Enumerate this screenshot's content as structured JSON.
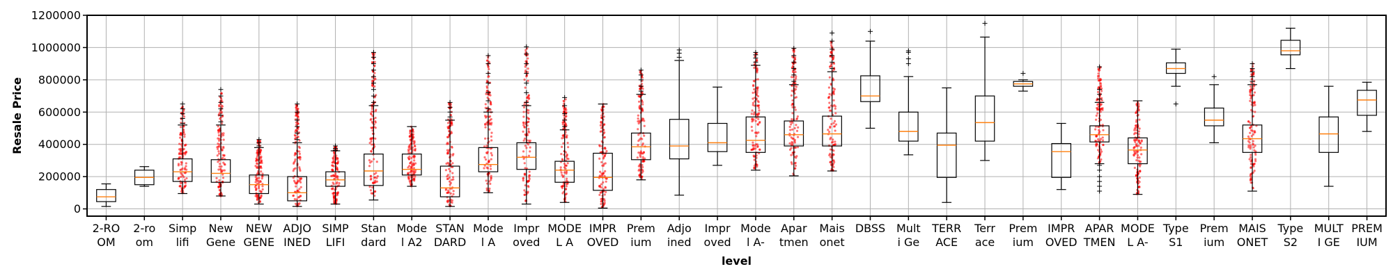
{
  "chart_data": {
    "type": "box",
    "xlabel": "level",
    "ylabel": "Resale Price",
    "ylim": [
      -45000,
      1200000
    ],
    "yticks": [
      0,
      200000,
      400000,
      600000,
      800000,
      1000000,
      1200000
    ],
    "ytick_labels": [
      "0",
      "200000",
      "400000",
      "600000",
      "800000",
      "1000000",
      "1200000"
    ],
    "grid": true,
    "colors": {
      "box": "#000000",
      "median": "#ff7f0e",
      "points": "#ff0000",
      "grid": "#b0b0b0"
    },
    "categories": [
      [
        "2-RO",
        "OM"
      ],
      [
        "2-ro",
        "om"
      ],
      [
        "Simp",
        "lifi"
      ],
      [
        "New",
        "Gene"
      ],
      [
        "NEW",
        "GENE"
      ],
      [
        "ADJO",
        "INED"
      ],
      [
        "SIMP",
        "LIFI"
      ],
      [
        "Stan",
        "dard"
      ],
      [
        "Mode",
        "l A2"
      ],
      [
        "STAN",
        "DARD"
      ],
      [
        "Mode",
        "l A"
      ],
      [
        "Impr",
        "oved"
      ],
      [
        "MODE",
        "L A"
      ],
      [
        "IMPR",
        "OVED"
      ],
      [
        "Prem",
        "ium"
      ],
      [
        "Adjo",
        "ined"
      ],
      [
        "Impr",
        "oved"
      ],
      [
        "Mode",
        "l A-"
      ],
      [
        "Apar",
        "tmen"
      ],
      [
        "Mais",
        "onet"
      ],
      [
        "DBSS",
        ""
      ],
      [
        "Mult",
        "i Ge"
      ],
      [
        "TERR",
        "ACE"
      ],
      [
        "Terr",
        "ace"
      ],
      [
        "Prem",
        "ium"
      ],
      [
        "IMPR",
        "OVED"
      ],
      [
        "APAR",
        "TMEN"
      ],
      [
        "MODE",
        "L A-"
      ],
      [
        "Type",
        "S1"
      ],
      [
        "Prem",
        "ium"
      ],
      [
        "MAIS",
        "ONET"
      ],
      [
        "Type",
        "S2"
      ],
      [
        "MULT",
        "I GE"
      ],
      [
        "PREM",
        "IUM"
      ]
    ],
    "boxes": [
      {
        "whislo": 15000,
        "q1": 45000,
        "med": 75000,
        "q3": 120000,
        "whishi": 155000,
        "fliers": [],
        "points": false
      },
      {
        "whislo": 140000,
        "q1": 150000,
        "med": 195000,
        "q3": 240000,
        "whishi": 262000,
        "fliers": [],
        "points": false
      },
      {
        "whislo": 95000,
        "q1": 170000,
        "med": 230000,
        "q3": 310000,
        "whishi": 520000,
        "fliers": [
          530000,
          560000,
          590000,
          620000,
          650000
        ],
        "points": true
      },
      {
        "whislo": 80000,
        "q1": 165000,
        "med": 220000,
        "q3": 305000,
        "whishi": 520000,
        "fliers": [
          540000,
          580000,
          620000,
          660000,
          700000,
          740000
        ],
        "points": true
      },
      {
        "whislo": 30000,
        "q1": 95000,
        "med": 150000,
        "q3": 210000,
        "whishi": 380000,
        "fliers": [
          390000,
          410000,
          430000
        ],
        "points": true
      },
      {
        "whislo": 15000,
        "q1": 50000,
        "med": 100000,
        "q3": 200000,
        "whishi": 410000,
        "fliers": [
          430000,
          470000,
          510000,
          550000,
          600000,
          650000
        ],
        "points": true
      },
      {
        "whislo": 30000,
        "q1": 140000,
        "med": 180000,
        "q3": 230000,
        "whishi": 360000,
        "fliers": [
          365000,
          375000,
          390000
        ],
        "points": true
      },
      {
        "whislo": 55000,
        "q1": 145000,
        "med": 235000,
        "q3": 340000,
        "whishi": 640000,
        "fliers": [
          660000,
          700000,
          740000,
          780000,
          820000,
          860000,
          900000,
          940000,
          970000
        ],
        "points": true
      },
      {
        "whislo": 140000,
        "q1": 210000,
        "med": 245000,
        "q3": 340000,
        "whishi": 510000,
        "fliers": [],
        "points": true
      },
      {
        "whislo": 15000,
        "q1": 75000,
        "med": 130000,
        "q3": 265000,
        "whishi": 550000,
        "fliers": [
          570000,
          600000,
          630000,
          660000
        ],
        "points": true
      },
      {
        "whislo": 100000,
        "q1": 230000,
        "med": 275000,
        "q3": 380000,
        "whishi": 600000,
        "fliers": [
          620000,
          670000,
          720000,
          780000,
          840000,
          900000,
          950000
        ],
        "points": true
      },
      {
        "whislo": 30000,
        "q1": 245000,
        "med": 320000,
        "q3": 410000,
        "whishi": 640000,
        "fliers": [
          660000,
          720000,
          780000,
          840000,
          900000,
          960000,
          1005000
        ],
        "points": true
      },
      {
        "whislo": 40000,
        "q1": 165000,
        "med": 240000,
        "q3": 295000,
        "whishi": 490000,
        "fliers": [
          510000,
          550000,
          590000,
          640000,
          690000
        ],
        "points": true
      },
      {
        "whislo": 5000,
        "q1": 115000,
        "med": 195000,
        "q3": 345000,
        "whishi": 650000,
        "fliers": [],
        "points": true
      },
      {
        "whislo": 180000,
        "q1": 305000,
        "med": 385000,
        "q3": 470000,
        "whishi": 710000,
        "fliers": [
          730000,
          760000,
          800000,
          830000,
          860000
        ],
        "points": true
      },
      {
        "whislo": 85000,
        "q1": 310000,
        "med": 390000,
        "q3": 555000,
        "whishi": 920000,
        "fliers": [
          940000,
          965000,
          985000
        ],
        "points": false
      },
      {
        "whislo": 270000,
        "q1": 355000,
        "med": 410000,
        "q3": 530000,
        "whishi": 755000,
        "fliers": [],
        "points": false
      },
      {
        "whislo": 240000,
        "q1": 350000,
        "med": 425000,
        "q3": 570000,
        "whishi": 890000,
        "fliers": [
          910000,
          935000,
          955000,
          970000
        ],
        "points": true
      },
      {
        "whislo": 205000,
        "q1": 390000,
        "med": 460000,
        "q3": 545000,
        "whishi": 770000,
        "fliers": [
          790000,
          830000,
          870000,
          910000,
          950000,
          995000
        ],
        "points": true
      },
      {
        "whislo": 235000,
        "q1": 390000,
        "med": 465000,
        "q3": 575000,
        "whishi": 850000,
        "fliers": [
          870000,
          910000,
          950000,
          990000,
          1040000,
          1090000
        ],
        "points": true
      },
      {
        "whislo": 500000,
        "q1": 665000,
        "med": 700000,
        "q3": 825000,
        "whishi": 1040000,
        "fliers": [
          1100000
        ],
        "points": false
      },
      {
        "whislo": 335000,
        "q1": 420000,
        "med": 480000,
        "q3": 600000,
        "whishi": 820000,
        "fliers": [
          900000,
          930000,
          970000,
          980000
        ],
        "points": false
      },
      {
        "whislo": 40000,
        "q1": 195000,
        "med": 395000,
        "q3": 470000,
        "whishi": 750000,
        "fliers": [],
        "points": false
      },
      {
        "whislo": 300000,
        "q1": 420000,
        "med": 535000,
        "q3": 700000,
        "whishi": 1065000,
        "fliers": [
          1150000
        ],
        "points": false
      },
      {
        "whislo": 730000,
        "q1": 760000,
        "med": 775000,
        "q3": 790000,
        "whishi": 800000,
        "fliers": [
          840000
        ],
        "points": false
      },
      {
        "whislo": 120000,
        "q1": 195000,
        "med": 355000,
        "q3": 405000,
        "whishi": 530000,
        "fliers": [],
        "points": false
      },
      {
        "whislo": 280000,
        "q1": 415000,
        "med": 460000,
        "q3": 515000,
        "whishi": 660000,
        "fliers": [
          110000,
          140000,
          170000,
          200000,
          240000,
          270000,
          680000,
          710000,
          740000,
          880000
        ],
        "points": true
      },
      {
        "whislo": 90000,
        "q1": 280000,
        "med": 365000,
        "q3": 440000,
        "whishi": 670000,
        "fliers": [],
        "points": true
      },
      {
        "whislo": 760000,
        "q1": 840000,
        "med": 870000,
        "q3": 905000,
        "whishi": 990000,
        "fliers": [
          650000
        ],
        "points": false
      },
      {
        "whislo": 410000,
        "q1": 515000,
        "med": 550000,
        "q3": 625000,
        "whishi": 770000,
        "fliers": [
          820000
        ],
        "points": false
      },
      {
        "whislo": 110000,
        "q1": 350000,
        "med": 435000,
        "q3": 520000,
        "whishi": 770000,
        "fliers": [
          790000,
          820000,
          850000,
          870000,
          900000
        ],
        "points": true
      },
      {
        "whislo": 870000,
        "q1": 955000,
        "med": 980000,
        "q3": 1045000,
        "whishi": 1120000,
        "fliers": [],
        "points": false
      },
      {
        "whislo": 140000,
        "q1": 350000,
        "med": 465000,
        "q3": 570000,
        "whishi": 760000,
        "fliers": [],
        "points": false
      },
      {
        "whislo": 480000,
        "q1": 580000,
        "med": 675000,
        "q3": 735000,
        "whishi": 785000,
        "fliers": [],
        "points": false
      }
    ]
  }
}
